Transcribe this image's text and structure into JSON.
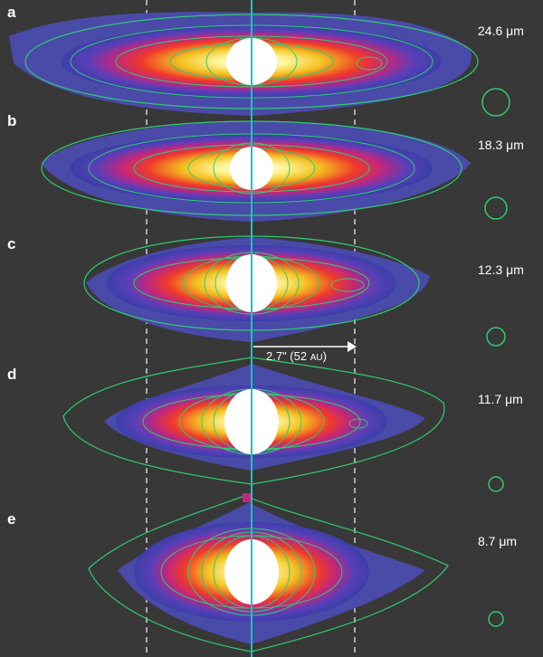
{
  "panels": [
    {
      "letter": "a",
      "wavelength": "24.6 μm"
    },
    {
      "letter": "b",
      "wavelength": "18.3 μm"
    },
    {
      "letter": "c",
      "wavelength": "12.3 μm"
    },
    {
      "letter": "d",
      "wavelength": "11.7 μm"
    },
    {
      "letter": "e",
      "wavelength": "8.7 μm"
    }
  ],
  "scale_bar": {
    "arcsec": "2.7\" (52 ",
    "au": "AU",
    "close": ")"
  },
  "colors": {
    "background": "#383838",
    "contour": "#2ecc71",
    "axis_line": "#19c3c3",
    "guide_lines": "#d0d0d0",
    "core": "#ffffff"
  }
}
